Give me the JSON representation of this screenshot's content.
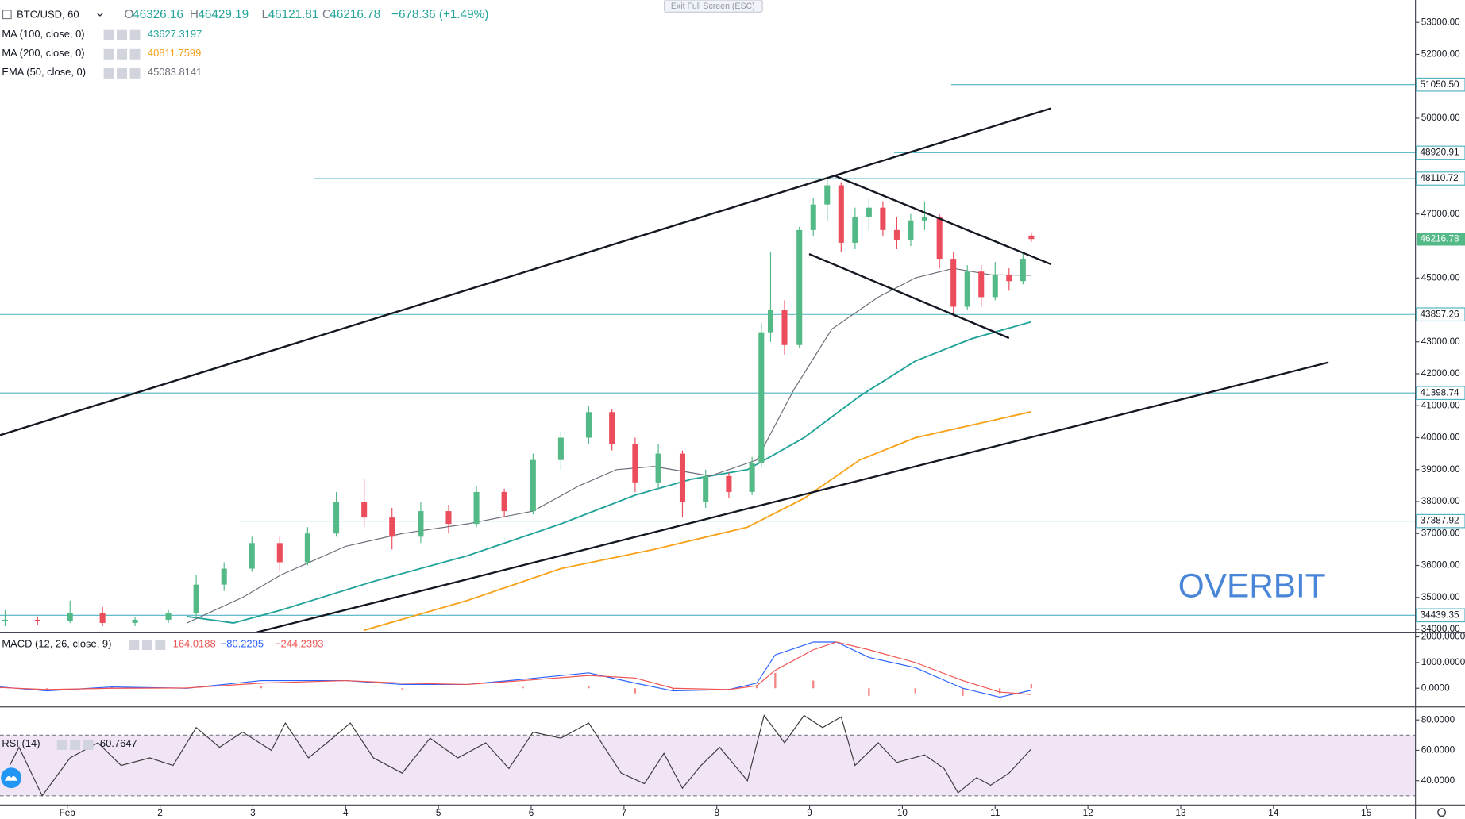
{
  "header": {
    "symbol": "BTC/USD, 60",
    "ohlc": [
      {
        "label": "O",
        "value": "46326.16"
      },
      {
        "label": "H",
        "value": "46429.19"
      },
      {
        "label": "L",
        "value": "46121.81"
      },
      {
        "label": "C",
        "value": "46216.78"
      }
    ],
    "change": "+678.36 (+1.49%)"
  },
  "button": "Exit Full Screen (ESC)",
  "watermark": "OVERBIT",
  "chart_data": [
    {
      "type": "candlestick",
      "up_color": "#53b987",
      "down_color": "#eb4d5c",
      "x": [
        0.33,
        0.68,
        1.03,
        1.38,
        1.73,
        2.09,
        2.39,
        2.69,
        2.99,
        3.29,
        3.59,
        3.9,
        4.2,
        4.5,
        4.81,
        5.11,
        5.41,
        5.71,
        6.02,
        6.32,
        6.62,
        6.87,
        7.12,
        7.37,
        7.63,
        7.88,
        8.13,
        8.38,
        8.48,
        8.58,
        8.73,
        8.89,
        9.04,
        9.19,
        9.34,
        9.49,
        9.64,
        9.79,
        9.94,
        10.09,
        10.24,
        10.4,
        10.55,
        10.7,
        10.85,
        11.0,
        11.15,
        11.3,
        11.39
      ],
      "open": [
        34250,
        34300,
        34250,
        34500,
        34200,
        34300,
        34500,
        35400,
        35900,
        36700,
        36100,
        37000,
        38000,
        37500,
        36900,
        37700,
        37300,
        38300,
        37700,
        39300,
        40000,
        40800,
        39800,
        38600,
        39500,
        38000,
        38800,
        38300,
        39200,
        43300,
        44000,
        42900,
        46500,
        47300,
        47900,
        46100,
        46900,
        47200,
        46500,
        46200,
        46800,
        46900,
        45600,
        44100,
        45200,
        44400,
        45100,
        44900,
        46326.16
      ],
      "high": [
        34600,
        34400,
        34900,
        34700,
        34400,
        34600,
        35700,
        36100,
        36900,
        36900,
        37200,
        38300,
        38700,
        37800,
        38000,
        37900,
        38500,
        38400,
        39500,
        40200,
        41000,
        40900,
        40000,
        39800,
        39600,
        39000,
        38900,
        39400,
        43600,
        45800,
        44300,
        46600,
        47500,
        48110,
        48000,
        47200,
        47500,
        47400,
        46900,
        47000,
        47400,
        47000,
        45800,
        45400,
        45400,
        45500,
        45300,
        45800,
        46429.19
      ],
      "low": [
        34100,
        34150,
        34200,
        34100,
        34100,
        34200,
        34400,
        35200,
        35800,
        35800,
        36000,
        36900,
        37200,
        36500,
        36700,
        37000,
        37200,
        37500,
        37600,
        39000,
        39800,
        39600,
        38300,
        38400,
        37500,
        37800,
        38100,
        38200,
        39100,
        43000,
        42600,
        42800,
        46300,
        46800,
        45800,
        45900,
        46500,
        46300,
        45900,
        46000,
        46500,
        45300,
        43800,
        44000,
        44100,
        44300,
        44600,
        44800,
        46121.81
      ],
      "close": [
        34300,
        34250,
        34500,
        34200,
        34300,
        34500,
        35400,
        35900,
        36700,
        36100,
        37000,
        38000,
        37500,
        36900,
        37700,
        37300,
        38300,
        37700,
        39300,
        40000,
        40800,
        39800,
        38600,
        39500,
        38000,
        38800,
        38300,
        39200,
        43300,
        44000,
        42900,
        46500,
        47300,
        47900,
        46100,
        46900,
        47200,
        46500,
        46200,
        46800,
        46900,
        45600,
        44100,
        45200,
        44400,
        45100,
        44900,
        45600,
        46216.78
      ],
      "series": [
        {
          "name": "MA (100, close, 0)",
          "legend_value": "43627.3197",
          "color": "#22a39a",
          "x": [
            2.29,
            2.79,
            3.3,
            4.3,
            5.31,
            6.32,
            7.12,
            7.73,
            8.33,
            8.94,
            9.54,
            10.14,
            10.75,
            11.39
          ],
          "values": [
            34400,
            34200,
            34600,
            35500,
            36300,
            37300,
            38200,
            38700,
            39000,
            40000,
            41300,
            42400,
            43100,
            43627
          ]
        },
        {
          "name": "MA (200, close, 0)",
          "legend_value": "40811.7599",
          "color": "#f7a21b",
          "x": [
            4.2,
            5.31,
            6.32,
            7.32,
            8.33,
            8.94,
            9.54,
            10.14,
            11.39
          ],
          "values": [
            33970,
            34900,
            35900,
            36500,
            37200,
            38100,
            39300,
            40000,
            40812
          ]
        },
        {
          "name": "EMA (50, close, 0)",
          "legend_value": "45083.8141",
          "color": "#6a6d78",
          "x": [
            2.29,
            2.89,
            3.3,
            4.0,
            4.61,
            5.31,
            6.02,
            6.52,
            6.92,
            7.32,
            7.93,
            8.43,
            8.83,
            9.24,
            9.74,
            10.14,
            10.55,
            10.95,
            11.39
          ],
          "values": [
            34200,
            35000,
            35700,
            36600,
            37000,
            37300,
            37700,
            38500,
            39000,
            39100,
            38800,
            39300,
            41500,
            43400,
            44400,
            45000,
            45300,
            45100,
            45083
          ]
        }
      ],
      "levels": [
        {
          "value": 51050.5,
          "label": "51050.50"
        },
        {
          "value": 48920.91,
          "label": "48920.91"
        },
        {
          "value": 48110.72,
          "label": "48110.72"
        },
        {
          "value": 43857.26,
          "label": "43857.26"
        },
        {
          "value": 41398.74,
          "label": "41398.74"
        },
        {
          "value": 37387.92,
          "label": "37387.92"
        },
        {
          "value": 34439.35,
          "label": "34439.35"
        }
      ],
      "level_color": "#4fb3c2",
      "price_tag": {
        "value": 46216.78,
        "label": "46216.78"
      },
      "ylim": [
        33910,
        53700
      ],
      "yticks": [
        {
          "value": 34000,
          "label": "34000.00"
        },
        {
          "value": 35000,
          "label": "35000.00"
        },
        {
          "value": 36000,
          "label": "36000.00"
        },
        {
          "value": 37000,
          "label": "37000.00"
        },
        {
          "value": 38000,
          "label": "38000.00"
        },
        {
          "value": 39000,
          "label": "39000.00"
        },
        {
          "value": 40000,
          "label": "40000.00"
        },
        {
          "value": 41000,
          "label": "41000.00"
        },
        {
          "value": 42000,
          "label": "42000.00"
        },
        {
          "value": 43000,
          "label": "43000.00"
        },
        {
          "value": 45000,
          "label": "45000.00"
        },
        {
          "value": 47000,
          "label": "47000.00"
        },
        {
          "value": 48000,
          "label": "48000.00"
        },
        {
          "value": 49000,
          "label": "49000.00"
        },
        {
          "value": 50000,
          "label": "50000.00"
        },
        {
          "value": 51000,
          "label": "51000.00"
        },
        {
          "value": 52000,
          "label": "52000.00"
        },
        {
          "value": 53000,
          "label": "53000.00"
        }
      ],
      "grid": false
    },
    {
      "type": "macd",
      "name": "MACD (12, 26, close, 9)",
      "x": [
        0.275,
        0.78,
        1.48,
        2.29,
        3.09,
        4.0,
        4.61,
        5.31,
        5.91,
        6.62,
        7.12,
        7.53,
        8.13,
        8.43,
        8.63,
        9.04,
        9.29,
        9.64,
        10.14,
        10.65,
        11.05,
        11.39
      ],
      "series": [
        {
          "name": "Histogram",
          "legend_value": "164.0188",
          "color": "#ef5350",
          "kind": "bar",
          "values": [
            20,
            -50,
            50,
            -10,
            100,
            0,
            -50,
            0,
            50,
            100,
            -200,
            -100,
            0,
            100,
            600,
            300,
            0,
            -300,
            -200,
            -300,
            -200,
            164
          ]
        },
        {
          "name": "MACD",
          "legend_value": "−80.2205",
          "color": "#2962ff",
          "kind": "line",
          "values": [
            50,
            -100,
            50,
            0,
            300,
            300,
            150,
            150,
            350,
            600,
            200,
            -100,
            -50,
            200,
            1300,
            1800,
            1800,
            1200,
            800,
            0,
            -350,
            -80
          ]
        },
        {
          "name": "Signal",
          "legend_value": "−244.2393",
          "color": "#ef5350",
          "kind": "line",
          "values": [
            30,
            -50,
            0,
            10,
            200,
            300,
            200,
            150,
            300,
            500,
            400,
            0,
            -50,
            100,
            700,
            1500,
            1800,
            1500,
            1000,
            300,
            -150,
            -244
          ]
        }
      ],
      "ylim": [
        -727,
        2182
      ],
      "yticks": [
        {
          "value": 0,
          "label": "0.0000"
        },
        {
          "value": 1000,
          "label": "1000.0000"
        },
        {
          "value": 2000,
          "label": "2000.0000"
        }
      ]
    },
    {
      "type": "line",
      "name": "RSI (14)",
      "legend_value": "60.7647",
      "color": "#3c3c3c",
      "band": [
        30,
        70
      ],
      "band_color": "#f1e4f4",
      "x": [
        0.38,
        0.48,
        0.73,
        1.03,
        1.33,
        1.58,
        1.89,
        2.14,
        2.39,
        2.64,
        2.89,
        3.2,
        3.35,
        3.6,
        3.9,
        4.05,
        4.3,
        4.61,
        4.91,
        5.21,
        5.51,
        5.76,
        6.02,
        6.32,
        6.62,
        6.97,
        7.22,
        7.43,
        7.63,
        7.83,
        8.03,
        8.33,
        8.51,
        8.73,
        8.94,
        9.14,
        9.34,
        9.49,
        9.74,
        9.94,
        10.24,
        10.45,
        10.6,
        10.8,
        10.95,
        11.15,
        11.39
      ],
      "values": [
        50,
        62,
        30,
        55,
        65,
        50,
        55,
        50,
        75,
        62,
        72,
        60,
        78,
        55,
        70,
        78,
        55,
        45,
        68,
        55,
        65,
        48,
        72,
        68,
        78,
        45,
        38,
        58,
        35,
        50,
        62,
        40,
        83,
        65,
        83,
        75,
        82,
        50,
        65,
        52,
        57,
        48,
        32,
        42,
        37,
        45,
        61
      ],
      "ylim": [
        24,
        88.6
      ],
      "yticks": [
        {
          "value": 40,
          "label": "40.0000"
        },
        {
          "value": 60,
          "label": "60.0000"
        },
        {
          "value": 80,
          "label": "80.0000"
        }
      ],
      "xlim": [
        0.275,
        15.53
      ],
      "xticks": [
        {
          "value": 1,
          "label": "Feb"
        },
        2,
        3,
        4,
        5,
        6,
        7,
        8,
        9,
        10,
        11,
        12,
        13,
        14,
        15
      ]
    }
  ]
}
